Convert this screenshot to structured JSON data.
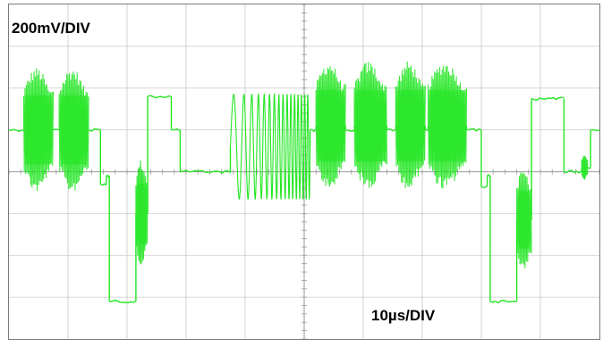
{
  "scale_labels": {
    "vertical": "200mV/DIV",
    "horizontal": "10µs/DIV"
  },
  "colors": {
    "trace": "#22e622",
    "grid": "#c8c8c8",
    "axis": "#9a9a9a",
    "frame": "#7a7a7a",
    "background": "#ffffff"
  },
  "chart_data": {
    "type": "line",
    "title": "",
    "xlabel": "",
    "ylabel": "",
    "grid": true,
    "divisions": {
      "x": 10,
      "y": 8
    },
    "xlim": [
      0,
      100
    ],
    "ylim": [
      -800,
      800
    ],
    "x_unit": "µs",
    "y_unit": "mV",
    "series": [
      {
        "segments": [
          {
            "kind": "level",
            "x_start": 0,
            "x_end": 2.5,
            "level": 200
          },
          {
            "kind": "burst",
            "x_start": 2.5,
            "x_end": 7.5,
            "center": 200,
            "amplitude": 300
          },
          {
            "kind": "level",
            "x_start": 7.5,
            "x_end": 8.5,
            "level": 200
          },
          {
            "kind": "burst",
            "x_start": 8.5,
            "x_end": 13.5,
            "center": 200,
            "amplitude": 300
          },
          {
            "kind": "level",
            "x_start": 13.5,
            "x_end": 15.5,
            "level": 200
          },
          {
            "kind": "level",
            "x_start": 15.5,
            "x_end": 16.5,
            "level": -60
          },
          {
            "kind": "level",
            "x_start": 16.5,
            "x_end": 17.0,
            "level": -20
          },
          {
            "kind": "level",
            "x_start": 17.0,
            "x_end": 21.5,
            "level": -620
          },
          {
            "kind": "burst",
            "x_start": 21.5,
            "x_end": 23.5,
            "center": -200,
            "amplitude": 260
          },
          {
            "kind": "level",
            "x_start": 23.5,
            "x_end": 27.5,
            "level": 360
          },
          {
            "kind": "level",
            "x_start": 27.5,
            "x_end": 29.0,
            "level": 200
          },
          {
            "kind": "level",
            "x_start": 29.0,
            "x_end": 31.0,
            "level": 0
          },
          {
            "kind": "level",
            "x_start": 31.0,
            "x_end": 37.5,
            "level": 0
          },
          {
            "kind": "sweep",
            "x_start": 37.5,
            "x_end": 51.0,
            "center": 120,
            "amplitude": 250,
            "cycles": 16
          },
          {
            "kind": "level",
            "x_start": 51.0,
            "x_end": 52.0,
            "level": 200
          },
          {
            "kind": "burst",
            "x_start": 52.0,
            "x_end": 57.0,
            "center": 220,
            "amplitude": 310
          },
          {
            "kind": "level",
            "x_start": 57.0,
            "x_end": 58.5,
            "level": 200
          },
          {
            "kind": "burst",
            "x_start": 58.5,
            "x_end": 64.0,
            "center": 220,
            "amplitude": 310
          },
          {
            "kind": "level",
            "x_start": 64.0,
            "x_end": 65.5,
            "level": 200
          },
          {
            "kind": "burst",
            "x_start": 65.5,
            "x_end": 70.5,
            "center": 220,
            "amplitude": 310
          },
          {
            "kind": "level",
            "x_start": 70.5,
            "x_end": 71.0,
            "level": 200
          },
          {
            "kind": "burst",
            "x_start": 71.0,
            "x_end": 77.5,
            "center": 220,
            "amplitude": 310
          },
          {
            "kind": "level",
            "x_start": 77.5,
            "x_end": 80.0,
            "level": 200
          },
          {
            "kind": "level",
            "x_start": 80.0,
            "x_end": 81.0,
            "level": -70
          },
          {
            "kind": "level",
            "x_start": 81.0,
            "x_end": 81.5,
            "level": -20
          },
          {
            "kind": "level",
            "x_start": 81.5,
            "x_end": 86.0,
            "level": -620
          },
          {
            "kind": "burst",
            "x_start": 86.0,
            "x_end": 88.5,
            "center": -230,
            "amplitude": 250
          },
          {
            "kind": "level",
            "x_start": 88.5,
            "x_end": 90.0,
            "level": 350
          },
          {
            "kind": "level",
            "x_start": 90.0,
            "x_end": 94.0,
            "level": 350
          },
          {
            "kind": "level",
            "x_start": 94.0,
            "x_end": 97.0,
            "level": 0
          },
          {
            "kind": "burst",
            "x_start": 97.0,
            "x_end": 98.0,
            "center": 20,
            "amplitude": 60
          },
          {
            "kind": "level",
            "x_start": 98.0,
            "x_end": 98.5,
            "level": 20
          },
          {
            "kind": "level",
            "x_start": 98.5,
            "x_end": 100.0,
            "level": 200
          }
        ]
      }
    ]
  }
}
